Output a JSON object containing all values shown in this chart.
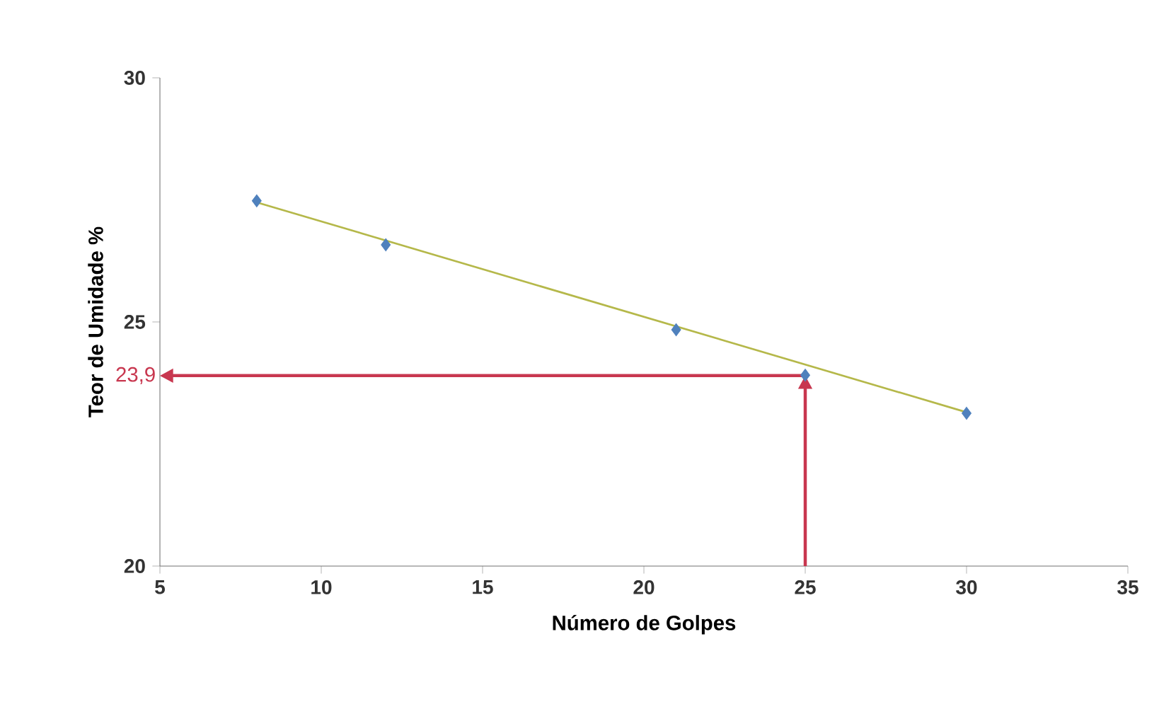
{
  "chart_data": {
    "type": "scatter",
    "xlabel": "Número de Golpes",
    "ylabel": "Teor de Umidade %",
    "xlim": [
      5,
      35
    ],
    "xticks": [
      5,
      10,
      15,
      20,
      25,
      30,
      35
    ],
    "ylim": [
      20,
      30
    ],
    "yticks": [
      20,
      25,
      30
    ],
    "grid": false,
    "marker": "diamond",
    "series": [
      {
        "color": "#4f81bd",
        "x": [
          8,
          12,
          21,
          25,
          30
        ],
        "values": [
          27.48,
          26.58,
          24.84,
          23.91,
          23.13
        ]
      },
      {
        "type": "line",
        "color": "#b5b84a",
        "marker": "none",
        "x": [
          8,
          30
        ],
        "values": [
          27.45,
          23.15
        ]
      }
    ],
    "ref_lines": [
      {
        "axis": "y",
        "value": 23.9,
        "label": "23,9",
        "color": "#c8374f"
      },
      {
        "axis": "x",
        "value": 25,
        "color": "#c8374f"
      }
    ]
  }
}
